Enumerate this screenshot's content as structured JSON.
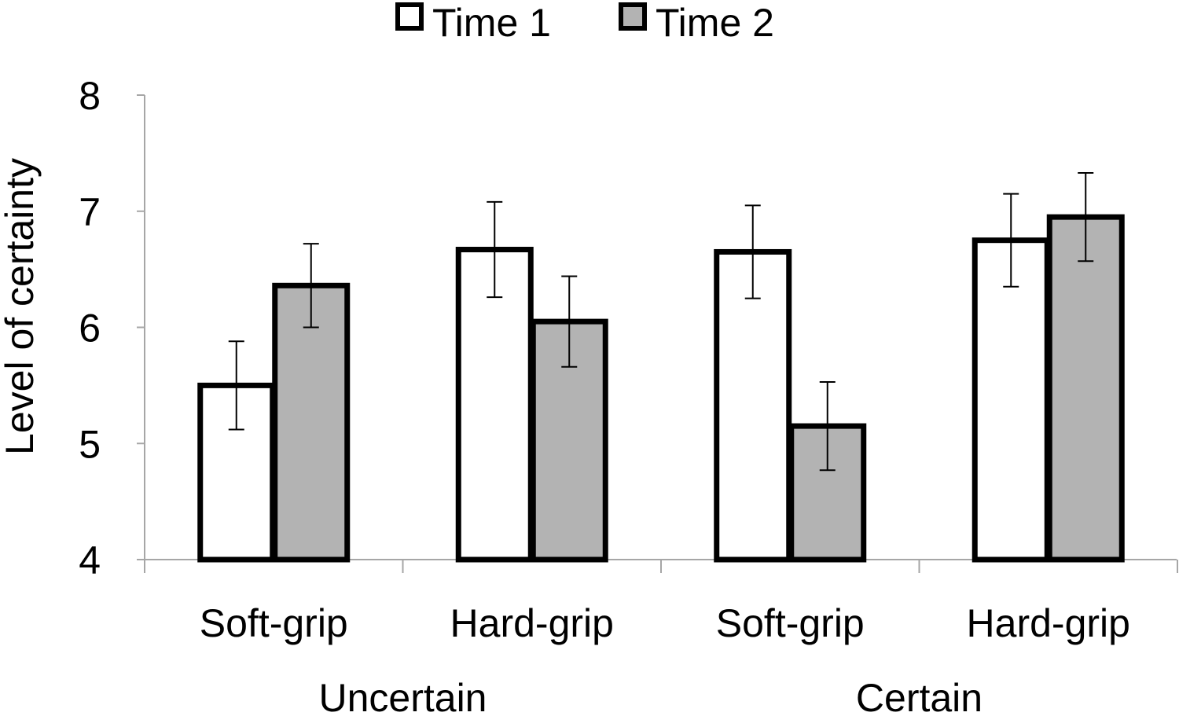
{
  "chart_data": {
    "type": "bar",
    "ylabel": "Level of certainty",
    "ylim": [
      4,
      8
    ],
    "yticks": [
      4,
      5,
      6,
      7,
      8
    ],
    "legend_position": "top-center",
    "grid": false,
    "groups": [
      {
        "label": "Uncertain",
        "categories": [
          "Soft-grip",
          "Hard-grip"
        ]
      },
      {
        "label": "Certain",
        "categories": [
          "Soft-grip",
          "Hard-grip"
        ]
      }
    ],
    "categories": [
      "Soft-grip",
      "Hard-grip",
      "Soft-grip",
      "Hard-grip"
    ],
    "series": [
      {
        "name": "Time 1",
        "color": "#ffffff",
        "values": [
          5.5,
          6.67,
          6.65,
          6.75
        ],
        "error": [
          0.38,
          0.41,
          0.4,
          0.4
        ]
      },
      {
        "name": "Time 2",
        "color": "#b3b3b3",
        "values": [
          6.36,
          6.05,
          5.15,
          6.95
        ],
        "error": [
          0.36,
          0.39,
          0.38,
          0.38
        ]
      }
    ]
  }
}
